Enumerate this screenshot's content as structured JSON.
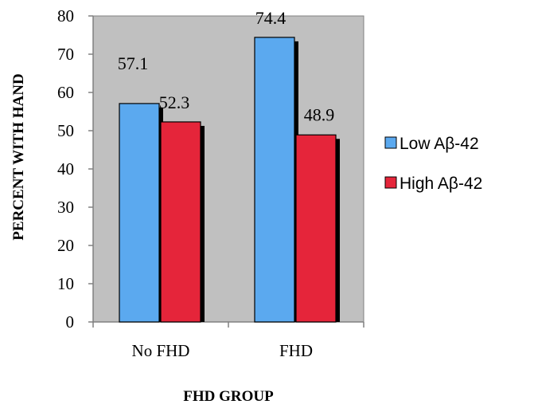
{
  "chart_data": {
    "type": "bar",
    "categories": [
      "No FHD",
      "FHD"
    ],
    "series": [
      {
        "name": "Low Aβ-42",
        "values": [
          57.1,
          74.4
        ],
        "color": "#5ba9ef"
      },
      {
        "name": "High Aβ-42",
        "values": [
          52.3,
          48.9
        ],
        "color": "#e5253a"
      }
    ],
    "data_labels": [
      [
        "57.1",
        "74.4"
      ],
      [
        "52.3",
        "48.9"
      ]
    ],
    "title": "",
    "xlabel": "FHD GROUP",
    "ylabel": "PERCENT WITH HAND",
    "ylim": [
      0,
      80
    ],
    "yticks": [
      0,
      10,
      20,
      30,
      40,
      50,
      60,
      70,
      80
    ],
    "grid": false,
    "plot_background": "#c0c0c0",
    "legend_position": "right"
  }
}
